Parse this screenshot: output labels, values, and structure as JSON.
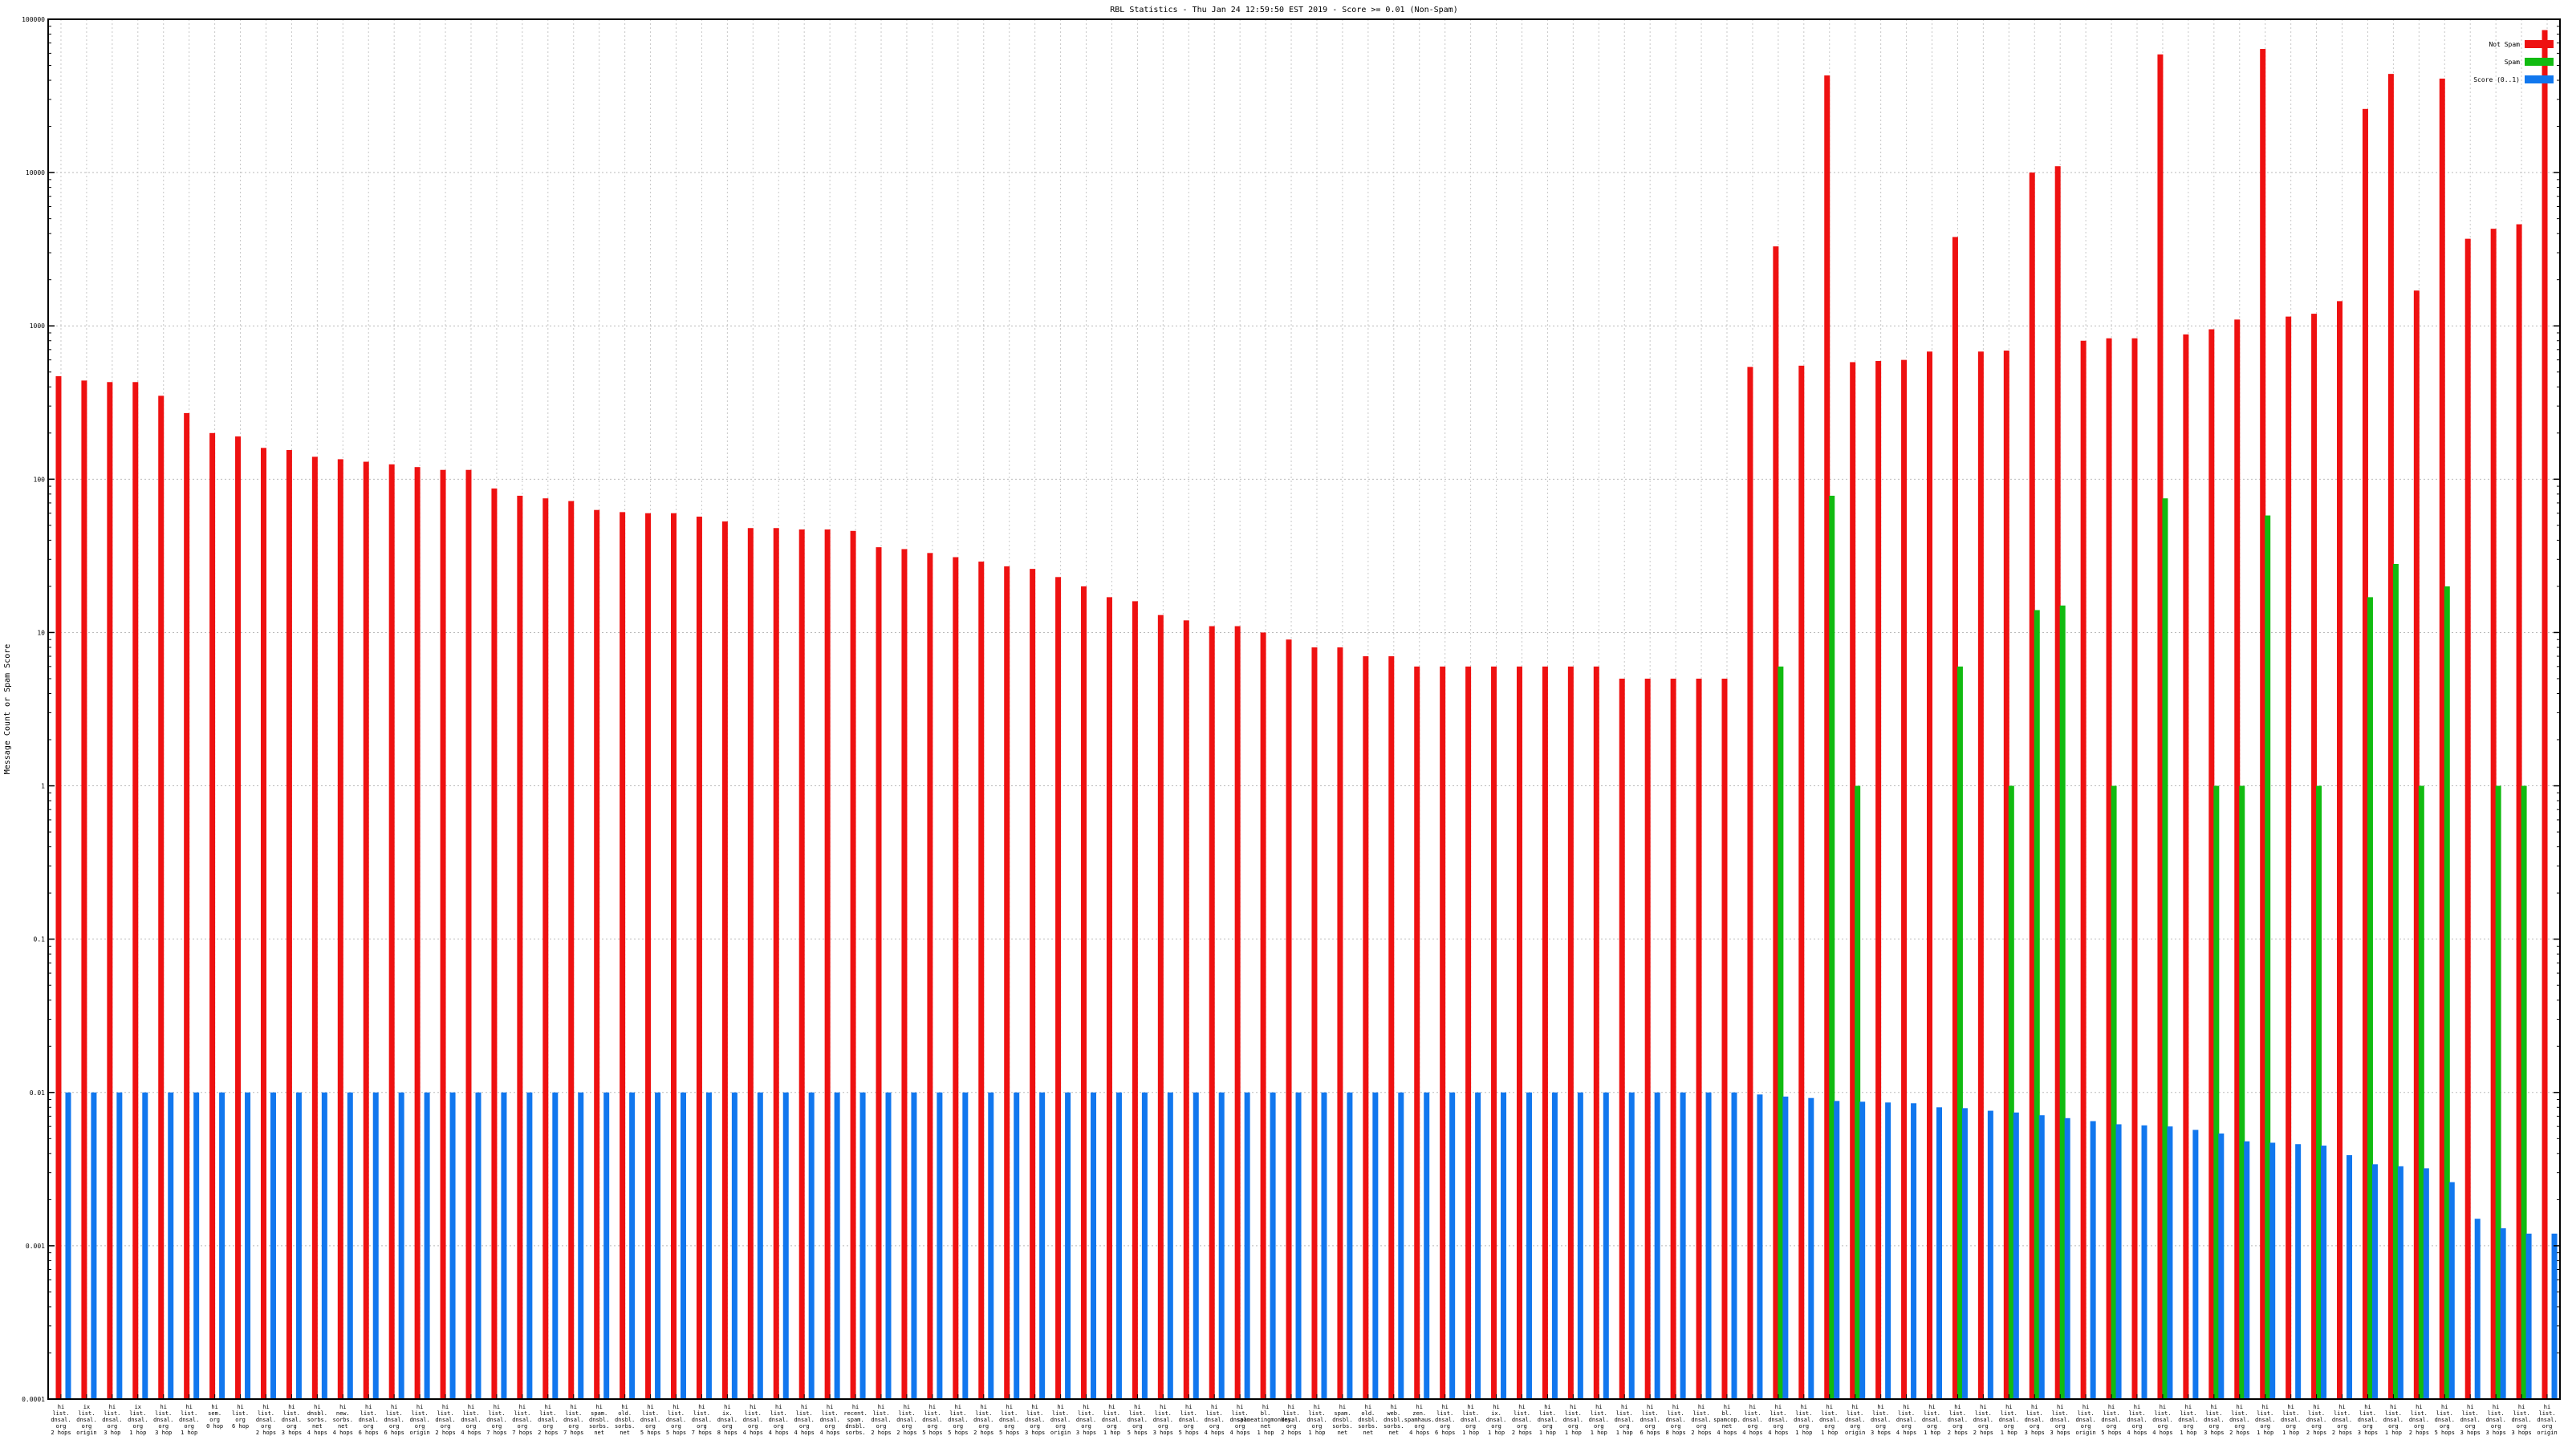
{
  "chart_data": {
    "type": "bar",
    "title": "RBL Statistics - Thu Jan 24 12:59:50 EST 2019 - Score >= 0.01 (Non-Spam)",
    "xlabel": "",
    "ylabel": "Message Count or Spam Score",
    "y_scale": "log",
    "ylim": [
      0.0001,
      100000
    ],
    "y_ticks": [
      {
        "value": 0.0001,
        "label": "0.0001"
      },
      {
        "value": 0.001,
        "label": "0.001"
      },
      {
        "value": 0.01,
        "label": "0.01"
      },
      {
        "value": 0.1,
        "label": "0.1"
      },
      {
        "value": 1,
        "label": "1"
      },
      {
        "value": 10,
        "label": "10"
      },
      {
        "value": 100,
        "label": "100"
      },
      {
        "value": 1000,
        "label": "1000"
      },
      {
        "value": 10000,
        "label": "10000"
      },
      {
        "value": 100000,
        "label": "100000"
      }
    ],
    "grid": true,
    "legend_position": "top-right",
    "series": [
      {
        "name": "Not Spam",
        "color": "#ee1111",
        "values": [
          470,
          440,
          430,
          430,
          350,
          270,
          200,
          190,
          160,
          155,
          140,
          135,
          130,
          125,
          120,
          115,
          115,
          87,
          78,
          75,
          72,
          63,
          61,
          60,
          60,
          57,
          53,
          48,
          48,
          47,
          47,
          46,
          36,
          35,
          33,
          31,
          29,
          27,
          26,
          23,
          20,
          17,
          16,
          13,
          12,
          11,
          11,
          10,
          9,
          8,
          8,
          7,
          7,
          6,
          6,
          6,
          6,
          6,
          6,
          6,
          6,
          5,
          5,
          5,
          5,
          5,
          540,
          3300,
          550,
          43000,
          580,
          590,
          600,
          680,
          3800,
          680,
          690,
          10000,
          11000,
          800,
          830,
          830,
          59000,
          880,
          950,
          1100,
          64000,
          1150,
          1200,
          1450,
          26000,
          44000,
          1700,
          41000,
          3700,
          4300,
          4600,
          85000
        ]
      },
      {
        "name": "Spam",
        "color": "#11bb11",
        "values": [
          0,
          0,
          0,
          0,
          0,
          0,
          0,
          0,
          0,
          0,
          0,
          0,
          0,
          0,
          0,
          0,
          0,
          0,
          0,
          0,
          0,
          0,
          0,
          0,
          0,
          0,
          0,
          0,
          0,
          0,
          0,
          0,
          0,
          0,
          0,
          0,
          0,
          0,
          0,
          0,
          0,
          0,
          0,
          0,
          0,
          0,
          0,
          0,
          0,
          0,
          0,
          0,
          0,
          0,
          0,
          0,
          0,
          0,
          0,
          0,
          0,
          0,
          0,
          0,
          0,
          0,
          0,
          6,
          0,
          78,
          1,
          0,
          0,
          0,
          6,
          0,
          1,
          14,
          15,
          0,
          1,
          0,
          75,
          0,
          1,
          1,
          58,
          0,
          1,
          0,
          17,
          28,
          1,
          20,
          0,
          1,
          1,
          0
        ]
      },
      {
        "name": "Score (0..1)",
        "color": "#1177ee",
        "values": [
          0.01,
          0.01,
          0.01,
          0.01,
          0.01,
          0.01,
          0.01,
          0.01,
          0.01,
          0.01,
          0.01,
          0.01,
          0.01,
          0.01,
          0.01,
          0.01,
          0.01,
          0.01,
          0.01,
          0.01,
          0.01,
          0.01,
          0.01,
          0.01,
          0.01,
          0.01,
          0.01,
          0.01,
          0.01,
          0.01,
          0.01,
          0.01,
          0.01,
          0.01,
          0.01,
          0.01,
          0.01,
          0.01,
          0.01,
          0.01,
          0.01,
          0.01,
          0.01,
          0.01,
          0.01,
          0.01,
          0.01,
          0.01,
          0.01,
          0.01,
          0.01,
          0.01,
          0.01,
          0.01,
          0.01,
          0.01,
          0.01,
          0.01,
          0.01,
          0.01,
          0.01,
          0.01,
          0.01,
          0.01,
          0.01,
          0.01,
          0.0097,
          0.0094,
          0.0092,
          0.0088,
          0.0087,
          0.0086,
          0.0085,
          0.008,
          0.0079,
          0.0076,
          0.0074,
          0.0071,
          0.0068,
          0.0065,
          0.0062,
          0.0061,
          0.006,
          0.0057,
          0.0054,
          0.0048,
          0.0047,
          0.0046,
          0.0045,
          0.0039,
          0.0034,
          0.0033,
          0.0032,
          0.0026,
          0.0015,
          0.0013,
          0.0012,
          0.0012
        ]
      }
    ],
    "categories": [
      [
        "hi",
        "list.",
        "dnsal.",
        "org",
        "2 hops"
      ],
      [
        "ix",
        "list.",
        "dnsal.",
        "org",
        "origin"
      ],
      [
        "hi",
        "list.",
        "dnsal.",
        "org",
        "3 hop"
      ],
      [
        "ix",
        "list.",
        "dnsal.",
        "org",
        "1 hop"
      ],
      [
        "hi",
        "list.",
        "dnsal.",
        "org",
        "3 hop"
      ],
      [
        "hi",
        "list.",
        "dnsal.",
        "org",
        "1 hop"
      ],
      [
        "hi",
        "sem.",
        "org",
        "0 hop"
      ],
      [
        "hi",
        "list.",
        "org",
        "6 hop"
      ],
      [
        "hi",
        "list.",
        "dnsal.",
        "org",
        "2 hops"
      ],
      [
        "hi",
        "list.",
        "dnsal.",
        "org",
        "3 hops"
      ],
      [
        "hi",
        "dnsbl.",
        "sorbs.",
        "net",
        "4 hops"
      ],
      [
        "hi",
        "new.",
        "sorbs.",
        "net",
        "4 hops"
      ],
      [
        "hi",
        "list.",
        "dnsal.",
        "org",
        "6 hops"
      ],
      [
        "hi",
        "list.",
        "dnsal.",
        "org",
        "6 hops"
      ],
      [
        "hi",
        "list.",
        "dnsal.",
        "org",
        "origin"
      ],
      [
        "hi",
        "list.",
        "dnsal.",
        "org",
        "2 hops"
      ],
      [
        "hi",
        "list.",
        "dnsal.",
        "org",
        "4 hops"
      ],
      [
        "hi",
        "list.",
        "dnsal.",
        "org",
        "7 hops"
      ],
      [
        "hi",
        "list.",
        "dnsal.",
        "org",
        "7 hops"
      ],
      [
        "hi",
        "list.",
        "dnsal.",
        "org",
        "2 hops"
      ],
      [
        "hi",
        "list.",
        "dnsal.",
        "org",
        "7 hops"
      ],
      [
        "hi",
        "spam.",
        "dnsbl.",
        "sorbs.",
        "net"
      ],
      [
        "hi",
        "old.",
        "dnsbl.",
        "sorbs.",
        "net"
      ],
      [
        "hi",
        "list.",
        "dnsal.",
        "org",
        "5 hops"
      ],
      [
        "hi",
        "list.",
        "dnsal.",
        "org",
        "5 hops"
      ],
      [
        "hi",
        "list.",
        "dnsal.",
        "org",
        "7 hops"
      ],
      [
        "hi",
        "ix.",
        "dnsal.",
        "org",
        "8 hops"
      ],
      [
        "hi",
        "list.",
        "dnsal.",
        "org",
        "4 hops"
      ],
      [
        "hi",
        "list.",
        "dnsal.",
        "org",
        "4 hops"
      ],
      [
        "hi",
        "list.",
        "dnsal.",
        "org",
        "4 hops"
      ],
      [
        "hi",
        "list.",
        "dnsal.",
        "org",
        "4 hops"
      ],
      [
        "hi",
        "recent.",
        "spam.",
        "dnsbl.",
        "sorbs."
      ],
      [
        "hi",
        "list.",
        "dnsal.",
        "org",
        "2 hops"
      ],
      [
        "hi",
        "list.",
        "dnsal.",
        "org",
        "2 hops"
      ],
      [
        "hi",
        "list.",
        "dnsal.",
        "org",
        "5 hops"
      ],
      [
        "hi",
        "list.",
        "dnsal.",
        "org",
        "5 hops"
      ],
      [
        "hi",
        "list.",
        "dnsal.",
        "org",
        "2 hops"
      ],
      [
        "hi",
        "list.",
        "dnsal.",
        "org",
        "5 hops"
      ],
      [
        "hi",
        "list.",
        "dnsal.",
        "org",
        "3 hops"
      ],
      [
        "hi",
        "list.",
        "dnsal.",
        "org",
        "origin"
      ],
      [
        "hi",
        "list.",
        "dnsal.",
        "org",
        "3 hops"
      ],
      [
        "hi",
        "list.",
        "dnsal.",
        "org",
        "1 hop"
      ],
      [
        "hi",
        "list.",
        "dnsal.",
        "org",
        "5 hops"
      ],
      [
        "hi",
        "list.",
        "dnsal.",
        "org",
        "3 hops"
      ],
      [
        "hi",
        "list.",
        "dnsal.",
        "org",
        "5 hops"
      ],
      [
        "hi",
        "list.",
        "dnsal.",
        "org",
        "4 hops"
      ],
      [
        "hi",
        "list.",
        "dnsal.",
        "org",
        "4 hops"
      ],
      [
        "hi",
        "bl.",
        "spameatingmonkey.",
        "net",
        "1 hop"
      ],
      [
        "hi",
        "list.",
        "dnsal.",
        "org",
        "2 hops"
      ],
      [
        "hi",
        "list.",
        "dnsal.",
        "org",
        "1 hop"
      ],
      [
        "hi",
        "spam.",
        "dnsbl.",
        "sorbs.",
        "net"
      ],
      [
        "hi",
        "old.",
        "dnsbl.",
        "sorbs.",
        "net"
      ],
      [
        "hi",
        "web.",
        "dnsbl.",
        "sorbs.",
        "net"
      ],
      [
        "hi",
        "zen.",
        "spamhaus.",
        "org",
        "4 hops"
      ],
      [
        "hi",
        "list.",
        "dnsal.",
        "org",
        "6 hops"
      ],
      [
        "hi",
        "list.",
        "dnsal.",
        "org",
        "1 hop"
      ],
      [
        "hi",
        "ix.",
        "dnsal.",
        "org",
        "1 hop"
      ],
      [
        "hi",
        "list.",
        "dnsal.",
        "org",
        "2 hops"
      ],
      [
        "hi",
        "list.",
        "dnsal.",
        "org",
        "1 hop"
      ],
      [
        "hi",
        "list.",
        "dnsal.",
        "org",
        "1 hop"
      ],
      [
        "hi",
        "list.",
        "dnsal.",
        "org",
        "1 hop"
      ],
      [
        "hi",
        "list.",
        "dnsal.",
        "org",
        "1 hop"
      ],
      [
        "hi",
        "list.",
        "dnsal.",
        "org",
        "6 hops"
      ],
      [
        "hi",
        "list.",
        "dnsal.",
        "org",
        "8 hops"
      ],
      [
        "hi",
        "list.",
        "dnsal.",
        "org",
        "2 hops"
      ],
      [
        "hi",
        "bl.",
        "spamcop.",
        "net",
        "4 hops"
      ],
      [
        "hi",
        "list.",
        "dnsal.",
        "org",
        "4 hops"
      ],
      [
        "hi",
        "list.",
        "dnsal.",
        "org",
        "4 hops"
      ],
      [
        "hi",
        "list.",
        "dnsal.",
        "org",
        "1 hop"
      ],
      [
        "hi",
        "list.",
        "dnsal.",
        "org",
        "1 hop"
      ],
      [
        "hi",
        "list.",
        "dnsal.",
        "org",
        "origin"
      ],
      [
        "hi",
        "list.",
        "dnsal.",
        "org",
        "3 hops"
      ],
      [
        "hi",
        "list.",
        "dnsal.",
        "org",
        "4 hops"
      ],
      [
        "hi",
        "list.",
        "dnsal.",
        "org",
        "1 hop"
      ],
      [
        "hi",
        "list.",
        "dnsal.",
        "org",
        "2 hops"
      ],
      [
        "hi",
        "list.",
        "dnsal.",
        "org",
        "2 hops"
      ],
      [
        "hi",
        "list.",
        "dnsal.",
        "org",
        "1 hop"
      ],
      [
        "hi",
        "list.",
        "dnsal.",
        "org",
        "3 hops"
      ],
      [
        "hi",
        "list.",
        "dnsal.",
        "org",
        "3 hops"
      ],
      [
        "hi",
        "list.",
        "dnsal.",
        "org",
        "origin"
      ],
      [
        "hi",
        "list.",
        "dnsal.",
        "org",
        "5 hops"
      ],
      [
        "hi",
        "list.",
        "dnsal.",
        "org",
        "4 hops"
      ],
      [
        "hi",
        "list.",
        "dnsal.",
        "org",
        "4 hops"
      ],
      [
        "hi",
        "list.",
        "dnsal.",
        "org",
        "1 hop"
      ],
      [
        "hi",
        "list.",
        "dnsal.",
        "org",
        "3 hops"
      ],
      [
        "hi",
        "list.",
        "dnsal.",
        "org",
        "2 hops"
      ],
      [
        "hi",
        "list.",
        "dnsal.",
        "org",
        "1 hop"
      ],
      [
        "hi",
        "list.",
        "dnsal.",
        "org",
        "1 hop"
      ],
      [
        "hi",
        "list.",
        "dnsal.",
        "org",
        "2 hops"
      ],
      [
        "hi",
        "list.",
        "dnsal.",
        "org",
        "2 hops"
      ],
      [
        "hi",
        "list.",
        "dnsal.",
        "org",
        "3 hops"
      ],
      [
        "hi",
        "list.",
        "dnsal.",
        "org",
        "1 hop"
      ],
      [
        "hi",
        "list.",
        "dnsal.",
        "org",
        "2 hops"
      ],
      [
        "hi",
        "list.",
        "dnsal.",
        "org",
        "5 hops"
      ],
      [
        "hi",
        "list.",
        "dnsal.",
        "org",
        "3 hops"
      ],
      [
        "hi",
        "list.",
        "dnsal.",
        "org",
        "3 hops"
      ],
      [
        "hi",
        "list.",
        "dnsal.",
        "org",
        "3 hops"
      ],
      [
        "hi",
        "list.",
        "dnsal.",
        "org",
        "origin"
      ]
    ]
  }
}
